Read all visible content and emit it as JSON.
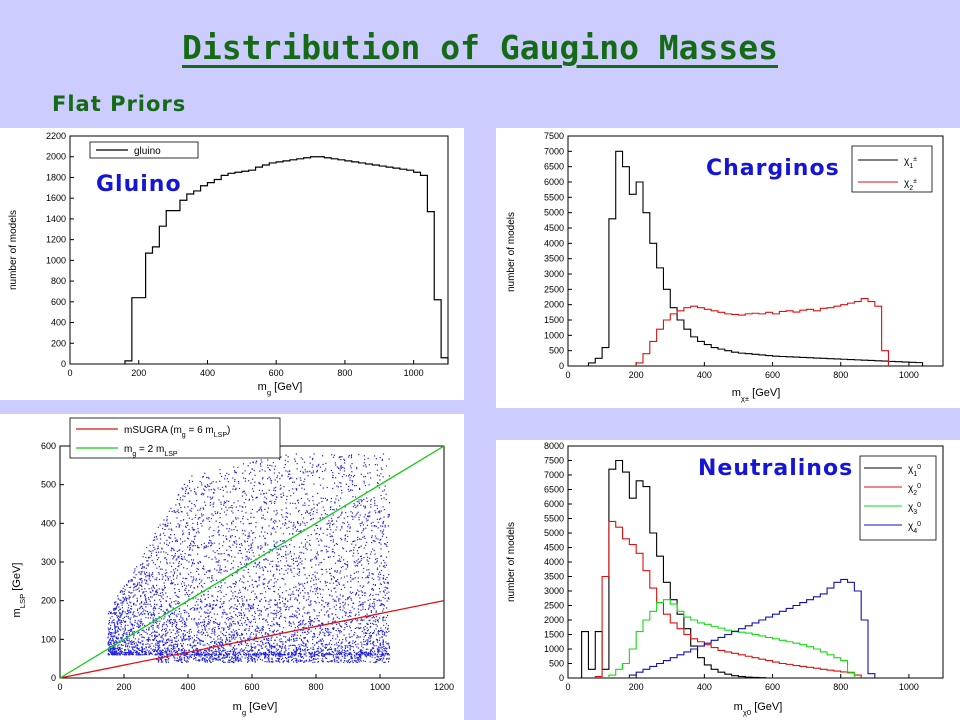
{
  "slide": {
    "title": "Distribution of Gaugino Masses",
    "subtitle": "Flat Priors"
  },
  "chart_data": [
    {
      "id": "gluino",
      "type": "histogram",
      "overlay_label": "Gluino",
      "xlabel": "m_g [GeV]",
      "ylabel": "number of models",
      "xlim": [
        0,
        1100
      ],
      "ylim": [
        0,
        2200
      ],
      "xticks": [
        0,
        200,
        400,
        600,
        800,
        1000
      ],
      "yticks": [
        0,
        200,
        400,
        600,
        800,
        1000,
        1200,
        1400,
        1600,
        1800,
        2000,
        2200
      ],
      "legend_position": "top-left",
      "bin_width": 20,
      "x_start": 160,
      "series": [
        {
          "name": "gluino",
          "color": "#000000",
          "values": [
            30,
            640,
            640,
            1070,
            1130,
            1330,
            1480,
            1480,
            1580,
            1640,
            1670,
            1720,
            1750,
            1780,
            1820,
            1840,
            1850,
            1860,
            1870,
            1900,
            1920,
            1940,
            1950,
            1960,
            1970,
            1980,
            1990,
            2000,
            2000,
            1990,
            1980,
            1970,
            1960,
            1950,
            1940,
            1930,
            1920,
            1910,
            1900,
            1890,
            1880,
            1870,
            1850,
            1820,
            1470,
            620,
            60
          ]
        }
      ]
    },
    {
      "id": "charginos",
      "type": "histogram",
      "overlay_label": "Charginos",
      "xlabel": "m_χ± [GeV]",
      "ylabel": "number of models",
      "xlim": [
        0,
        1100
      ],
      "ylim": [
        0,
        7500
      ],
      "xticks": [
        0,
        200,
        400,
        600,
        800,
        1000
      ],
      "yticks": [
        0,
        500,
        1000,
        1500,
        2000,
        2500,
        3000,
        3500,
        4000,
        4500,
        5000,
        5500,
        6000,
        6500,
        7000,
        7500
      ],
      "legend_position": "top-right",
      "bin_width": 20,
      "series": [
        {
          "name": "χ1±",
          "color": "#000000",
          "x_start": 60,
          "values": [
            100,
            250,
            600,
            4800,
            7000,
            6500,
            5600,
            6000,
            5000,
            4000,
            3200,
            2500,
            1900,
            1500,
            1200,
            950,
            800,
            700,
            600,
            550,
            500,
            450,
            420,
            400,
            380,
            360,
            340,
            320,
            310,
            300,
            290,
            280,
            270,
            260,
            250,
            240,
            230,
            220,
            210,
            200,
            190,
            180,
            170,
            160,
            150,
            140,
            130,
            120,
            110
          ]
        },
        {
          "name": "χ2±",
          "color": "#dd1111",
          "x_start": 200,
          "values": [
            100,
            400,
            800,
            1200,
            1500,
            1700,
            1800,
            1900,
            1950,
            1900,
            1850,
            1800,
            1750,
            1700,
            1680,
            1660,
            1700,
            1720,
            1700,
            1750,
            1700,
            1780,
            1800,
            1760,
            1820,
            1850,
            1800,
            1880,
            1900,
            1950,
            2000,
            2050,
            2100,
            2200,
            2100,
            1950,
            500
          ]
        }
      ]
    },
    {
      "id": "lsp_vs_gluino",
      "type": "scatter",
      "xlabel": "m_g [GeV]",
      "ylabel": "m_LSP [GeV]",
      "xlim": [
        0,
        1200
      ],
      "ylim": [
        0,
        600
      ],
      "xticks": [
        0,
        200,
        400,
        600,
        800,
        1000,
        1200
      ],
      "yticks": [
        0,
        100,
        200,
        300,
        400,
        500,
        600
      ],
      "legend_position": "top-left",
      "point_color": "#2020e0",
      "region": {
        "x_min": 150,
        "x_max": 1030,
        "y_min": 60,
        "y_max_at_x_min": 170,
        "y_max_at_400": 520,
        "y_max_top": 580,
        "low_band_y": [
          40,
          60
        ]
      },
      "lines": [
        {
          "name": "mSUGRA (m_g = 6 m_LSP)",
          "color": "#dd1111",
          "x": [
            0,
            1200
          ],
          "y": [
            0,
            200
          ]
        },
        {
          "name": "m_g = 2 m_LSP",
          "color": "#11cc11",
          "x": [
            0,
            1200
          ],
          "y": [
            0,
            600
          ]
        }
      ]
    },
    {
      "id": "neutralinos",
      "type": "histogram",
      "overlay_label": "Neutralinos",
      "xlabel": "m_χ0 [GeV]",
      "ylabel": "number of models",
      "xlim": [
        0,
        1100
      ],
      "ylim": [
        0,
        8000
      ],
      "xticks": [
        0,
        200,
        400,
        600,
        800,
        1000
      ],
      "yticks": [
        0,
        500,
        1000,
        1500,
        2000,
        2500,
        3000,
        3500,
        4000,
        4500,
        5000,
        5500,
        6000,
        6500,
        7000,
        7500,
        8000
      ],
      "legend_position": "top-right",
      "bin_width": 20,
      "series": [
        {
          "name": "χ1^0",
          "color": "#000000",
          "x_start": 40,
          "values": [
            1600,
            300,
            1600,
            300,
            7200,
            7500,
            7100,
            6200,
            6800,
            6600,
            5000,
            4200,
            3300,
            2700,
            2200,
            1700,
            1100,
            700,
            450,
            300,
            200,
            130,
            80,
            50,
            30,
            20,
            10
          ]
        },
        {
          "name": "χ2^0",
          "color": "#dd1111",
          "x_start": 80,
          "values": [
            50,
            3500,
            5400,
            5200,
            4800,
            4600,
            4300,
            3700,
            3100,
            2600,
            2200,
            1900,
            1700,
            1500,
            1350,
            1250,
            1150,
            1050,
            950,
            900,
            850,
            800,
            750,
            700,
            650,
            600,
            550,
            500,
            470,
            430,
            400,
            370,
            340,
            300,
            270,
            240,
            210,
            180,
            100
          ]
        },
        {
          "name": "χ3^0",
          "color": "#11dd11",
          "x_start": 120,
          "values": [
            100,
            300,
            500,
            1000,
            1600,
            2000,
            2300,
            2600,
            2700,
            2550,
            2300,
            2100,
            2000,
            1900,
            1850,
            1780,
            1720,
            1650,
            1620,
            1580,
            1550,
            1500,
            1450,
            1400,
            1350,
            1300,
            1250,
            1200,
            1150,
            1080,
            1000,
            900,
            800,
            700,
            600,
            200
          ]
        },
        {
          "name": "χ4^0",
          "color": "#1111bb",
          "x_start": 180,
          "values": [
            100,
            200,
            300,
            400,
            500,
            600,
            700,
            800,
            900,
            1000,
            1100,
            1200,
            1300,
            1400,
            1500,
            1600,
            1700,
            1800,
            1900,
            2000,
            2100,
            2200,
            2300,
            2400,
            2500,
            2600,
            2700,
            2800,
            2900,
            3100,
            3300,
            3400,
            3300,
            3000,
            2000,
            150
          ]
        }
      ]
    }
  ]
}
